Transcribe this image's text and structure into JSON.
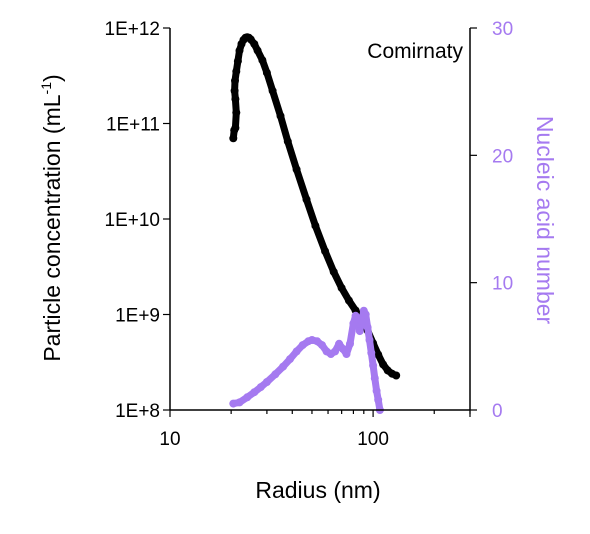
{
  "chart_data": {
    "type": "scatter",
    "annotation": "Comirnaty",
    "xlabel": "Radius (nm)",
    "xscale": "log",
    "xlim": [
      10,
      300
    ],
    "xticks": [
      10,
      100
    ],
    "xtick_labels": [
      "10",
      "100"
    ],
    "y_left": {
      "label_main": "Particle concentration (mL",
      "label_sup": "-1",
      "label_end": ")",
      "scale": "log",
      "lim": [
        100000000.0,
        1000000000000.0
      ],
      "ticks": [
        100000000.0,
        1000000000.0,
        10000000000.0,
        100000000000.0,
        1000000000000.0
      ],
      "tick_labels": [
        "1E+8",
        "1E+9",
        "1E+10",
        "1E+11",
        "1E+12"
      ]
    },
    "y_right": {
      "label": "Nucleic acid number",
      "scale": "linear",
      "lim": [
        0,
        30
      ],
      "ticks": [
        0,
        10,
        20,
        30
      ],
      "tick_labels": [
        "0",
        "10",
        "20",
        "30"
      ]
    },
    "grid": false,
    "series": [
      {
        "axis": "left",
        "color": "#000000",
        "x": [
          20.5,
          20.7,
          21.0,
          21.2,
          21.0,
          20.8,
          20.9,
          21.2,
          21.6,
          22.0,
          22.5,
          23.0,
          23.5,
          24.0,
          24.5,
          25.0,
          26.0,
          27.0,
          28.5,
          30.0,
          32.0,
          35.0,
          38.0,
          42.0,
          47.0,
          52.0,
          58.0,
          64.0,
          70.0,
          76.0,
          82.0,
          88.0,
          94.0,
          100.0,
          106.0,
          112.0,
          118.0,
          124.0,
          130.0
        ],
        "y": [
          70000000000.0,
          85000000000.0,
          90000000000.0,
          130000000000.0,
          180000000000.0,
          220000000000.0,
          280000000000.0,
          350000000000.0,
          450000000000.0,
          580000000000.0,
          680000000000.0,
          750000000000.0,
          790000000000.0,
          800000000000.0,
          790000000000.0,
          760000000000.0,
          680000000000.0,
          580000000000.0,
          460000000000.0,
          340000000000.0,
          220000000000.0,
          120000000000.0,
          65000000000.0,
          33000000000.0,
          16000000000.0,
          8500000000.0,
          4600000000.0,
          2800000000.0,
          1900000000.0,
          1400000000.0,
          1100000000.0,
          880000000.0,
          680000000.0,
          500000000.0,
          380000000.0,
          300000000.0,
          260000000.0,
          240000000.0,
          230000000.0
        ]
      },
      {
        "axis": "right",
        "color": "#a57af0",
        "x": [
          20.5,
          22.0,
          24.0,
          26.0,
          28.0,
          30.0,
          33.0,
          36.0,
          39.0,
          42.0,
          45.0,
          48.0,
          50.0,
          53.0,
          56.0,
          59.0,
          62.0,
          65.0,
          68.0,
          71.0,
          74.0,
          77.0,
          80.0,
          82.0,
          84.0,
          86.0,
          88.0,
          90.0,
          92.0,
          94.0,
          96.0,
          98.0,
          100.0,
          102.0,
          104.0,
          106.0,
          108.0
        ],
        "y": [
          0.5,
          0.6,
          1.0,
          1.4,
          1.8,
          2.2,
          2.8,
          3.4,
          4.0,
          4.6,
          5.1,
          5.4,
          5.5,
          5.4,
          5.1,
          4.6,
          4.4,
          4.6,
          5.2,
          4.8,
          4.4,
          5.2,
          6.8,
          7.4,
          7.2,
          6.2,
          7.0,
          7.8,
          7.5,
          6.5,
          5.5,
          4.5,
          3.5,
          2.5,
          1.5,
          0.8,
          0.0
        ]
      }
    ]
  }
}
